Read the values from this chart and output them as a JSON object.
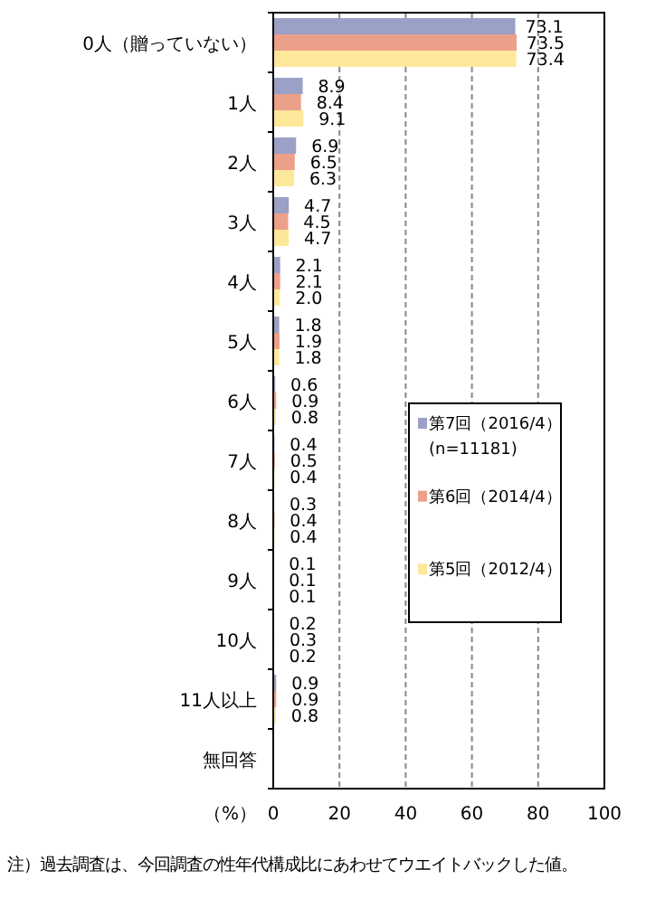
{
  "chart_data": {
    "type": "bar",
    "orientation": "horizontal",
    "categories": [
      "0人（贈っていない）",
      "1人",
      "2人",
      "3人",
      "4人",
      "5人",
      "6人",
      "7人",
      "8人",
      "9人",
      "10人",
      "11人以上",
      "無回答"
    ],
    "series": [
      {
        "name": "第7回（2016/4）\n(n=11181)",
        "color": "#9aa0c6",
        "values": [
          73.1,
          8.9,
          6.9,
          4.7,
          2.1,
          1.8,
          0.6,
          0.4,
          0.3,
          0.1,
          0.2,
          0.9,
          null
        ],
        "value_labels": [
          "73.1",
          "8.9",
          "6.9",
          "4.7",
          "2.1",
          "1.8",
          "0.6",
          "0.4",
          "0.3",
          "0.1",
          "0.2",
          "0.9",
          null
        ]
      },
      {
        "name": "第6回（2014/4）",
        "color": "#eca08a",
        "values": [
          73.5,
          8.4,
          6.5,
          4.5,
          2.1,
          1.9,
          0.9,
          0.5,
          0.4,
          0.1,
          0.3,
          0.9,
          null
        ],
        "value_labels": [
          "73.5",
          "8.4",
          "6.5",
          "4.5",
          "2.1",
          "1.9",
          "0.9",
          "0.5",
          "0.4",
          "0.1",
          "0.3",
          "0.9",
          null
        ]
      },
      {
        "name": "第5回（2012/4）",
        "color": "#fde899",
        "values": [
          73.4,
          9.1,
          6.3,
          4.7,
          2.0,
          1.8,
          0.8,
          0.4,
          0.4,
          0.1,
          0.2,
          0.8,
          null
        ],
        "value_labels": [
          "73.4",
          "9.1",
          "6.3",
          "4.7",
          "2.0",
          "1.8",
          "0.8",
          "0.4",
          "0.4",
          "0.1",
          "0.2",
          "0.8",
          null
        ]
      }
    ],
    "xlim": [
      0,
      100
    ],
    "xticks": [
      0,
      20,
      40,
      60,
      80,
      100
    ],
    "xlabel": "（%）",
    "grid": "x",
    "legend": "right",
    "annotations": [
      "注）過去調査は、今回調査の性年代構成比にあわせてウエイトバックした値。"
    ]
  }
}
